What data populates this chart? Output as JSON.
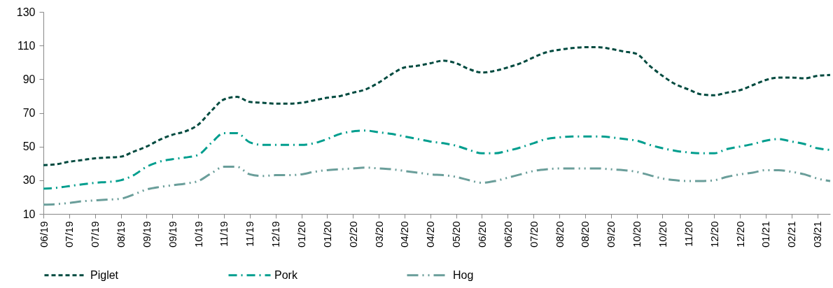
{
  "chart_data": {
    "type": "line",
    "categories": [
      "06/19",
      null,
      "07/19",
      null,
      "07/19",
      null,
      "08/19",
      null,
      "09/19",
      null,
      "09/19",
      null,
      "10/19",
      null,
      "11/19",
      null,
      "11/19",
      null,
      "12/19",
      null,
      "01/20",
      null,
      "01/20",
      null,
      "02/20",
      null,
      "03/20",
      null,
      "04/20",
      null,
      "04/20",
      null,
      "05/20",
      null,
      "06/20",
      null,
      "06/20",
      null,
      "07/20",
      null,
      "08/20",
      null,
      "08/20",
      null,
      "09/20",
      null,
      "10/20",
      null,
      "10/20",
      null,
      "11/20",
      null,
      "12/20",
      null,
      "12/20",
      null,
      "01/21",
      null,
      "02/21",
      null,
      "03/21",
      null
    ],
    "series": [
      {
        "name": "Piglet",
        "color": "#004a3f",
        "line_style": "dashed",
        "values": [
          39,
          39.5,
          41,
          42,
          43,
          43.5,
          44,
          47,
          50,
          54,
          57,
          59,
          63,
          71,
          78,
          79.5,
          76.5,
          76,
          75.5,
          75.5,
          76,
          77.5,
          79,
          80,
          82,
          84,
          88,
          93,
          97,
          98,
          99.5,
          101,
          99.5,
          96,
          94,
          95,
          97,
          99.5,
          103,
          106,
          107.5,
          108.5,
          109,
          109,
          108,
          106.5,
          105,
          98,
          92,
          87,
          84,
          81,
          80.5,
          82,
          83.5,
          86.5,
          89.5,
          91,
          91,
          90.5,
          92,
          92.5
        ]
      },
      {
        "name": "Pork",
        "color": "#009e8e",
        "line_style": "dashdot",
        "values": [
          25,
          25.5,
          26.5,
          27.5,
          28.5,
          29,
          30,
          33,
          38,
          41,
          42.5,
          43.5,
          45,
          52,
          58,
          58,
          52.5,
          51,
          51,
          51,
          51,
          52,
          54.5,
          57.5,
          59,
          59.5,
          58.5,
          57.5,
          56,
          54.5,
          53,
          52,
          50.5,
          48,
          46,
          46,
          47.5,
          49.5,
          52,
          54.5,
          55.5,
          56,
          56,
          56,
          55.5,
          54.5,
          53.5,
          51,
          49,
          47.5,
          46.5,
          46,
          46,
          48.5,
          50,
          51.5,
          53.5,
          54.5,
          53,
          51.5,
          49,
          48
        ]
      },
      {
        "name": "Hog",
        "color": "#6a9e9a",
        "line_style": "dashdotdot",
        "values": [
          15.5,
          15.8,
          16.5,
          17.5,
          18,
          18.5,
          19,
          21.5,
          24.5,
          26,
          27,
          28,
          29.5,
          34,
          38,
          38,
          33.5,
          32.5,
          33,
          33,
          33.5,
          35,
          36,
          36.5,
          37,
          37.5,
          37,
          36.5,
          35.5,
          34.5,
          33.5,
          33,
          32,
          30,
          28.5,
          29.5,
          31.5,
          33.5,
          35.5,
          36.5,
          37,
          37,
          37,
          37,
          36.5,
          36,
          35,
          33,
          31,
          30,
          29.5,
          29.5,
          30,
          32,
          33.5,
          34.5,
          36,
          36,
          35,
          33.5,
          31,
          29.5
        ]
      }
    ],
    "ylim": [
      10,
      130
    ],
    "yticks": [
      10,
      30,
      50,
      70,
      90,
      110,
      130
    ],
    "grid": false,
    "legend": "bottom"
  }
}
